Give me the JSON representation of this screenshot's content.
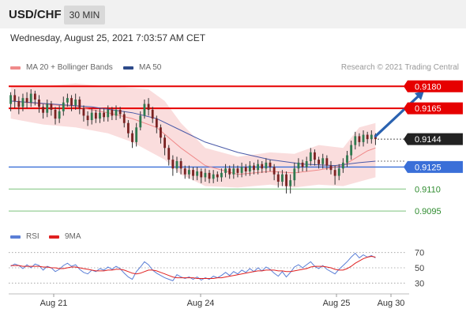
{
  "header": {
    "pair": "USD/CHF",
    "timeframe": "30 MIN",
    "datetime": "Wednesday, August 25, 2021 7:03:57 AM CET"
  },
  "legend": {
    "ma20_label": "MA 20 + Bollinger Bands",
    "ma50_label": "MA 50",
    "credit": "Research © 2021 Trading Central"
  },
  "rsi_legend": {
    "rsi_label": "RSI",
    "ma_label": "9MA"
  },
  "colors": {
    "up_candle": "#2f7a4f",
    "down_candle": "#7a2222",
    "bollinger_fill": "#f9d7d7",
    "ma20": "#f08a8a",
    "ma50": "#4a5aa8",
    "resistance": "#e60000",
    "current": "#222222",
    "pivot": "#3a6fd8",
    "support": "#2e8b2e",
    "forecast_arrow": "#2a62b0",
    "rsi_line": "#5b7fd6",
    "rsi_ma": "#e02020"
  },
  "chart_data": {
    "type": "candlestick",
    "x_tick_labels": [
      "Aug 21",
      "Aug 24",
      "Aug 25",
      "Aug 30"
    ],
    "price_levels": [
      {
        "role": "resistance",
        "label": "0.9180",
        "value": 0.918
      },
      {
        "role": "resistance",
        "label": "0.9165",
        "value": 0.9165
      },
      {
        "role": "current",
        "label": "0.9144",
        "value": 0.9144
      },
      {
        "role": "pivot",
        "label": "0.9125",
        "value": 0.9125
      },
      {
        "role": "support",
        "label": "0.9110",
        "value": 0.911
      },
      {
        "role": "support",
        "label": "0.9095",
        "value": 0.9095
      }
    ],
    "ylim": [
      0.9087,
      0.9185
    ],
    "candles": [
      [
        0.9168,
        0.9174,
        0.9176,
        0.9163
      ],
      [
        0.9174,
        0.917,
        0.9178,
        0.9165
      ],
      [
        0.917,
        0.9166,
        0.9173,
        0.9161
      ],
      [
        0.9166,
        0.9172,
        0.9175,
        0.9163
      ],
      [
        0.9172,
        0.9169,
        0.9176,
        0.9165
      ],
      [
        0.9169,
        0.9175,
        0.9178,
        0.9166
      ],
      [
        0.9175,
        0.9171,
        0.9177,
        0.9167
      ],
      [
        0.9171,
        0.9166,
        0.9174,
        0.9162
      ],
      [
        0.9166,
        0.9162,
        0.9168,
        0.9158
      ],
      [
        0.9162,
        0.9168,
        0.9171,
        0.9159
      ],
      [
        0.9168,
        0.9164,
        0.917,
        0.916
      ],
      [
        0.9164,
        0.9158,
        0.9166,
        0.9154
      ],
      [
        0.9158,
        0.9163,
        0.9167,
        0.9155
      ],
      [
        0.9163,
        0.9169,
        0.9173,
        0.916
      ],
      [
        0.9169,
        0.9172,
        0.9175,
        0.9166
      ],
      [
        0.9172,
        0.9167,
        0.9174,
        0.9163
      ],
      [
        0.9167,
        0.9171,
        0.9175,
        0.9164
      ],
      [
        0.9171,
        0.9165,
        0.9173,
        0.9161
      ],
      [
        0.9165,
        0.916,
        0.9167,
        0.9156
      ],
      [
        0.916,
        0.9157,
        0.9163,
        0.9153
      ],
      [
        0.9157,
        0.9162,
        0.9165,
        0.9154
      ],
      [
        0.9162,
        0.9158,
        0.9164,
        0.9155
      ],
      [
        0.9158,
        0.9162,
        0.9165,
        0.9155
      ],
      [
        0.9162,
        0.9159,
        0.9165,
        0.9156
      ],
      [
        0.9159,
        0.9164,
        0.9167,
        0.9156
      ],
      [
        0.9164,
        0.916,
        0.9166,
        0.9157
      ],
      [
        0.916,
        0.9164,
        0.9167,
        0.9157
      ],
      [
        0.9164,
        0.9161,
        0.9166,
        0.9158
      ],
      [
        0.9161,
        0.9155,
        0.9163,
        0.9152
      ],
      [
        0.9155,
        0.9148,
        0.9157,
        0.9145
      ],
      [
        0.9148,
        0.9142,
        0.915,
        0.9138
      ],
      [
        0.9142,
        0.9152,
        0.9155,
        0.9139
      ],
      [
        0.9152,
        0.916,
        0.9163,
        0.915
      ],
      [
        0.916,
        0.9168,
        0.9171,
        0.9158
      ],
      [
        0.9168,
        0.9164,
        0.9172,
        0.916
      ],
      [
        0.9164,
        0.9158,
        0.9166,
        0.9155
      ],
      [
        0.9158,
        0.9152,
        0.916,
        0.9148
      ],
      [
        0.9152,
        0.9145,
        0.9154,
        0.9141
      ],
      [
        0.9145,
        0.9138,
        0.9147,
        0.9133
      ],
      [
        0.9138,
        0.913,
        0.914,
        0.9126
      ],
      [
        0.913,
        0.9124,
        0.9133,
        0.9119
      ],
      [
        0.9124,
        0.9129,
        0.9132,
        0.9121
      ],
      [
        0.9129,
        0.9124,
        0.9131,
        0.912
      ],
      [
        0.9124,
        0.912,
        0.9126,
        0.9117
      ],
      [
        0.912,
        0.9123,
        0.9126,
        0.9117
      ],
      [
        0.9123,
        0.9119,
        0.9125,
        0.9116
      ],
      [
        0.9119,
        0.9122,
        0.9125,
        0.9116
      ],
      [
        0.9122,
        0.9118,
        0.9124,
        0.9114
      ],
      [
        0.9118,
        0.9121,
        0.9124,
        0.9115
      ],
      [
        0.9121,
        0.9117,
        0.9123,
        0.9114
      ],
      [
        0.9117,
        0.912,
        0.9123,
        0.9114
      ],
      [
        0.912,
        0.9118,
        0.9122,
        0.9115
      ],
      [
        0.9118,
        0.9121,
        0.9124,
        0.9115
      ],
      [
        0.9121,
        0.9124,
        0.9127,
        0.9118
      ],
      [
        0.9124,
        0.912,
        0.9126,
        0.9117
      ],
      [
        0.912,
        0.9124,
        0.9127,
        0.9117
      ],
      [
        0.9124,
        0.9121,
        0.9126,
        0.9118
      ],
      [
        0.9121,
        0.9125,
        0.9128,
        0.9118
      ],
      [
        0.9125,
        0.9122,
        0.9127,
        0.9119
      ],
      [
        0.9122,
        0.9126,
        0.9129,
        0.9119
      ],
      [
        0.9126,
        0.9123,
        0.9128,
        0.912
      ],
      [
        0.9123,
        0.9127,
        0.913,
        0.912
      ],
      [
        0.9127,
        0.9124,
        0.9129,
        0.9121
      ],
      [
        0.9124,
        0.9128,
        0.9131,
        0.9121
      ],
      [
        0.9128,
        0.9125,
        0.913,
        0.9122
      ],
      [
        0.9125,
        0.912,
        0.9127,
        0.9116
      ],
      [
        0.912,
        0.9115,
        0.9122,
        0.9111
      ],
      [
        0.9115,
        0.912,
        0.9123,
        0.9112
      ],
      [
        0.912,
        0.9112,
        0.9122,
        0.9107
      ],
      [
        0.9112,
        0.9116,
        0.912,
        0.9107
      ],
      [
        0.9116,
        0.9124,
        0.9128,
        0.9112
      ],
      [
        0.9124,
        0.9128,
        0.9131,
        0.9121
      ],
      [
        0.9128,
        0.9125,
        0.913,
        0.9122
      ],
      [
        0.9125,
        0.9129,
        0.9132,
        0.9122
      ],
      [
        0.9129,
        0.9135,
        0.9138,
        0.9126
      ],
      [
        0.9135,
        0.913,
        0.9137,
        0.9126
      ],
      [
        0.913,
        0.9127,
        0.9132,
        0.9124
      ],
      [
        0.9127,
        0.9131,
        0.9134,
        0.9124
      ],
      [
        0.9131,
        0.9126,
        0.9133,
        0.9123
      ],
      [
        0.9126,
        0.9123,
        0.9129,
        0.912
      ],
      [
        0.9123,
        0.9119,
        0.9126,
        0.9113
      ],
      [
        0.9119,
        0.9124,
        0.9127,
        0.9116
      ],
      [
        0.9124,
        0.9128,
        0.9131,
        0.9121
      ],
      [
        0.9128,
        0.9133,
        0.9136,
        0.9125
      ],
      [
        0.9133,
        0.914,
        0.9143,
        0.913
      ],
      [
        0.914,
        0.9146,
        0.9149,
        0.9137
      ],
      [
        0.9146,
        0.9142,
        0.9148,
        0.9139
      ],
      [
        0.9142,
        0.9147,
        0.915,
        0.9139
      ],
      [
        0.9147,
        0.9144,
        0.9149,
        0.9141
      ],
      [
        0.9144,
        0.9147,
        0.915,
        0.9141
      ],
      [
        0.9147,
        0.9144,
        0.9148,
        0.914
      ]
    ],
    "ma20": [
      [
        0,
        0.917
      ],
      [
        8,
        0.9168
      ],
      [
        16,
        0.9166
      ],
      [
        24,
        0.9162
      ],
      [
        30,
        0.9158
      ],
      [
        36,
        0.9152
      ],
      [
        42,
        0.9138
      ],
      [
        48,
        0.9126
      ],
      [
        56,
        0.912
      ],
      [
        64,
        0.9122
      ],
      [
        70,
        0.9121
      ],
      [
        76,
        0.9123
      ],
      [
        82,
        0.9126
      ],
      [
        88,
        0.9136
      ],
      [
        90,
        0.9138
      ]
    ],
    "ma50": [
      [
        0,
        0.917
      ],
      [
        10,
        0.9168
      ],
      [
        20,
        0.9166
      ],
      [
        30,
        0.9162
      ],
      [
        36,
        0.9158
      ],
      [
        42,
        0.915
      ],
      [
        48,
        0.9142
      ],
      [
        56,
        0.9135
      ],
      [
        64,
        0.913
      ],
      [
        72,
        0.9127
      ],
      [
        80,
        0.9126
      ],
      [
        86,
        0.9128
      ],
      [
        90,
        0.9129
      ]
    ],
    "bollinger_upper": [
      [
        0,
        0.918
      ],
      [
        8,
        0.918
      ],
      [
        16,
        0.9182
      ],
      [
        24,
        0.918
      ],
      [
        30,
        0.9179
      ],
      [
        34,
        0.9178
      ],
      [
        38,
        0.917
      ],
      [
        42,
        0.9155
      ],
      [
        48,
        0.9138
      ],
      [
        56,
        0.9132
      ],
      [
        64,
        0.9135
      ],
      [
        70,
        0.9134
      ],
      [
        76,
        0.914
      ],
      [
        82,
        0.9138
      ],
      [
        86,
        0.9152
      ],
      [
        90,
        0.9155
      ]
    ],
    "bollinger_lower": [
      [
        0,
        0.9158
      ],
      [
        8,
        0.9154
      ],
      [
        16,
        0.9152
      ],
      [
        24,
        0.9148
      ],
      [
        30,
        0.9142
      ],
      [
        34,
        0.9136
      ],
      [
        38,
        0.913
      ],
      [
        42,
        0.912
      ],
      [
        48,
        0.9112
      ],
      [
        56,
        0.9111
      ],
      [
        64,
        0.9113
      ],
      [
        70,
        0.9111
      ],
      [
        76,
        0.9113
      ],
      [
        82,
        0.9112
      ],
      [
        86,
        0.9115
      ],
      [
        90,
        0.9118
      ]
    ],
    "forecast_arrow": {
      "from": [
        90,
        0.9146
      ],
      "to": [
        102,
        0.9177
      ]
    },
    "rsi": {
      "tick_labels": [
        "70",
        "50",
        "30"
      ],
      "ylim": [
        20,
        80
      ],
      "rsi_values": [
        52,
        55,
        53,
        49,
        54,
        50,
        55,
        53,
        47,
        52,
        50,
        45,
        48,
        53,
        56,
        52,
        54,
        48,
        44,
        42,
        47,
        45,
        49,
        47,
        51,
        48,
        52,
        49,
        43,
        38,
        35,
        45,
        51,
        58,
        54,
        47,
        43,
        40,
        37,
        35,
        33,
        41,
        38,
        36,
        38,
        35,
        38,
        34,
        37,
        35,
        39,
        37,
        40,
        44,
        40,
        45,
        42,
        47,
        44,
        49,
        45,
        50,
        46,
        51,
        48,
        43,
        39,
        45,
        38,
        44,
        51,
        54,
        50,
        54,
        58,
        52,
        49,
        53,
        48,
        45,
        42,
        48,
        53,
        58,
        64,
        69,
        63,
        67,
        64,
        66,
        63
      ],
      "ma_values": [
        53,
        53,
        53,
        52,
        52,
        52,
        52,
        52,
        51,
        51,
        50,
        50,
        49,
        49,
        50,
        51,
        51,
        50,
        49,
        48,
        47,
        46,
        46,
        46,
        47,
        47,
        48,
        48,
        47,
        45,
        43,
        42,
        43,
        45,
        47,
        47,
        46,
        44,
        42,
        40,
        38,
        37,
        37,
        37,
        37,
        37,
        36,
        36,
        36,
        36,
        36,
        37,
        37,
        38,
        39,
        40,
        41,
        42,
        43,
        44,
        45,
        46,
        46,
        47,
        47,
        47,
        46,
        46,
        45,
        45,
        46,
        47,
        48,
        49,
        51,
        52,
        52,
        52,
        51,
        50,
        48,
        47,
        47,
        49,
        52,
        56,
        59,
        62,
        64,
        65,
        64
      ]
    }
  }
}
